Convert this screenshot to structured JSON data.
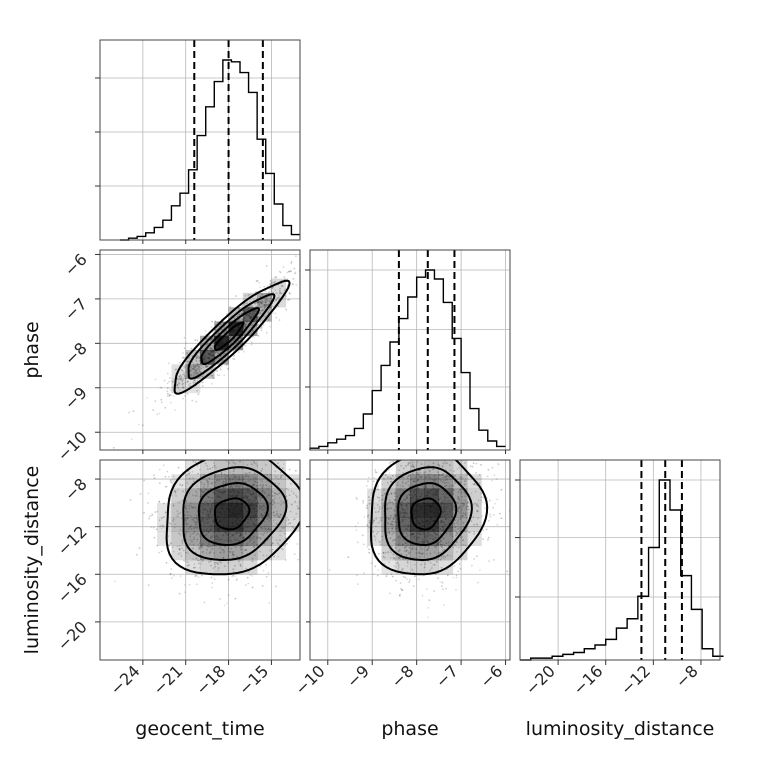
{
  "chart_data": {
    "type": "corner",
    "parameters": [
      "geocent_time",
      "phase",
      "luminosity_distance"
    ],
    "axes": {
      "geocent_time": {
        "range": [
          -27,
          -13
        ],
        "ticks": [
          -24,
          -21,
          -18,
          -15
        ],
        "tick_labels": [
          "−24",
          "−21",
          "−18",
          "−15"
        ]
      },
      "phase": {
        "range": [
          -10.4,
          -5.9
        ],
        "ticks": [
          -10,
          -9,
          -8,
          -7,
          -6
        ],
        "tick_labels": [
          "−10",
          "−9",
          "−8",
          "−7",
          "−6"
        ]
      },
      "luminosity_distance": {
        "range": [
          -23.2,
          -6.4
        ],
        "ticks": [
          -20,
          -16,
          -12,
          -8
        ],
        "tick_labels": [
          "−20",
          "−16",
          "−12",
          "−8"
        ]
      }
    },
    "histograms": [
      {
        "param": "geocent_time",
        "bin_edges": [
          -25.6,
          -25.0,
          -24.4,
          -23.8,
          -23.2,
          -22.6,
          -22.0,
          -21.4,
          -20.8,
          -20.2,
          -19.6,
          -19.0,
          -18.4,
          -17.8,
          -17.2,
          -16.6,
          -16.0,
          -15.4,
          -14.8,
          -14.2,
          -13.6,
          -13.0
        ],
        "counts": [
          0,
          0.01,
          0.02,
          0.04,
          0.07,
          0.11,
          0.19,
          0.26,
          0.39,
          0.58,
          0.74,
          0.88,
          1.0,
          0.99,
          0.93,
          0.82,
          0.56,
          0.37,
          0.2,
          0.08,
          0.03
        ],
        "quantiles": [
          -20.4,
          -18.0,
          -15.6
        ],
        "y_ticks": [
          0.3,
          0.6,
          0.9
        ]
      },
      {
        "param": "phase",
        "bin_edges": [
          -10.4,
          -10.2,
          -10.0,
          -9.8,
          -9.6,
          -9.4,
          -9.2,
          -9.0,
          -8.8,
          -8.6,
          -8.4,
          -8.2,
          -8.0,
          -7.8,
          -7.6,
          -7.4,
          -7.2,
          -7.0,
          -6.8,
          -6.6,
          -6.4,
          -6.2,
          -6.0
        ],
        "counts": [
          0.01,
          0.02,
          0.04,
          0.06,
          0.08,
          0.12,
          0.2,
          0.33,
          0.47,
          0.6,
          0.73,
          0.85,
          0.96,
          1.0,
          0.95,
          0.82,
          0.62,
          0.43,
          0.23,
          0.11,
          0.05,
          0.02
        ],
        "quantiles": [
          -8.4,
          -7.75,
          -7.15
        ],
        "y_ticks": [
          0.35,
          0.67,
          1.0
        ]
      },
      {
        "param": "luminosity_distance",
        "bin_edges": [
          -23.2,
          -22.3,
          -21.4,
          -20.5,
          -19.6,
          -18.7,
          -17.8,
          -16.9,
          -16.0,
          -15.1,
          -14.2,
          -13.3,
          -12.4,
          -11.5,
          -10.6,
          -9.7,
          -8.8,
          -7.9,
          -7.0,
          -6.1
        ],
        "counts": [
          0.0,
          0.01,
          0.01,
          0.02,
          0.03,
          0.04,
          0.06,
          0.08,
          0.11,
          0.17,
          0.22,
          0.34,
          0.6,
          0.96,
          0.8,
          0.45,
          0.27,
          0.06,
          0.02
        ],
        "quantiles": [
          -13.0,
          -11.0,
          -9.6
        ],
        "y_ticks": [
          0.35,
          0.68,
          1.0
        ]
      }
    ],
    "joint": [
      {
        "x": "geocent_time",
        "y": "phase",
        "mean": [
          -18.0,
          -7.85
        ],
        "sd": [
          2.0,
          0.62
        ],
        "corr": 0.92,
        "n_points": 1400,
        "contour_sigmas": [
          0.5,
          1.0,
          1.5,
          2.0
        ]
      },
      {
        "x": "geocent_time",
        "y": "luminosity_distance",
        "mean": [
          -17.8,
          -10.9
        ],
        "sd": [
          2.4,
          2.6
        ],
        "corr": 0.15,
        "n_points": 1400,
        "contour_sigmas": [
          0.5,
          1.0,
          1.5,
          2.0
        ]
      },
      {
        "x": "phase",
        "y": "luminosity_distance",
        "mean": [
          -7.8,
          -10.9
        ],
        "sd": [
          0.65,
          2.6
        ],
        "corr": 0.1,
        "n_points": 1400,
        "contour_sigmas": [
          0.5,
          1.0,
          1.5,
          2.0
        ]
      }
    ],
    "xlabels": [
      "geocent_time",
      "phase",
      "luminosity_distance"
    ],
    "ylabels": [
      "",
      "phase",
      "luminosity_distance"
    ],
    "grid": true
  }
}
